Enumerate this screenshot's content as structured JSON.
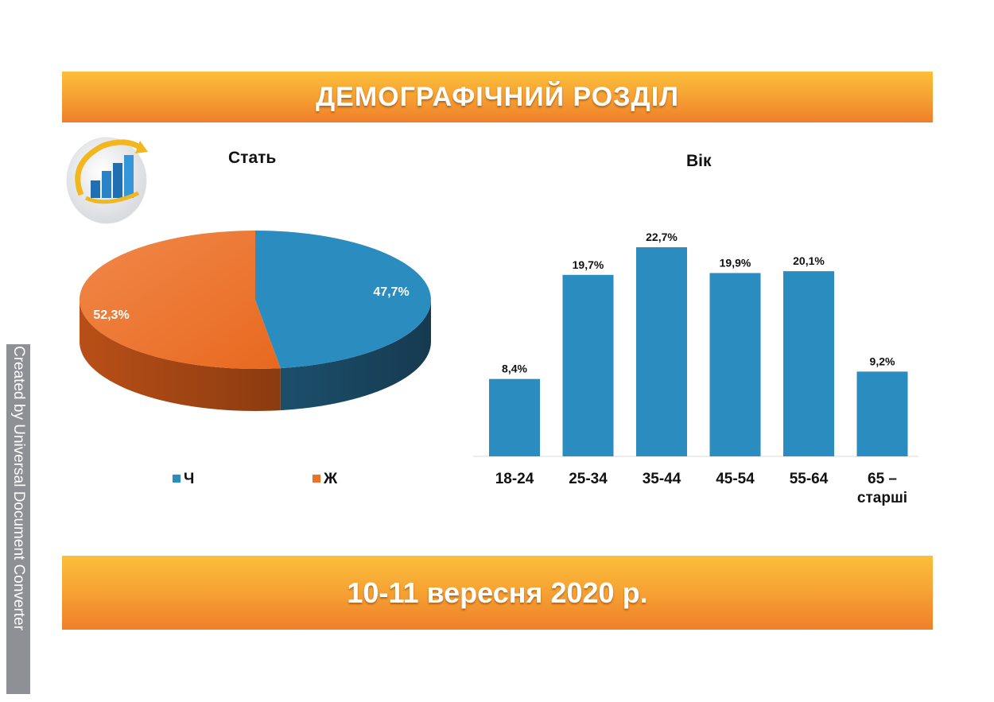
{
  "header": {
    "title": "ДЕМОГРАФІЧНИЙ РОЗДІЛ"
  },
  "footer": {
    "text": "10-11 вересня 2020 р."
  },
  "side_note": "Created by Universal Document Converter",
  "logo_icon": "growth-chart-logo-icon",
  "colors": {
    "blue": "#2b8cbf",
    "orange": "#ed7126",
    "banner": "#f7a434"
  },
  "chart_data": [
    {
      "type": "pie",
      "title": "Стать",
      "slices": [
        {
          "label": "Ч",
          "value": 47.7,
          "display": "47,7%",
          "color": "#2b8cbf"
        },
        {
          "label": "Ж",
          "value": 52.3,
          "display": "52,3%",
          "color": "#ed7126"
        }
      ],
      "legend_position": "bottom"
    },
    {
      "type": "bar",
      "title": "Вік",
      "categories": [
        "18-24",
        "25-34",
        "35-44",
        "45-54",
        "55-64",
        "65 – старші"
      ],
      "values": [
        8.4,
        19.7,
        22.7,
        19.9,
        20.1,
        9.2
      ],
      "data_labels": [
        "8,4%",
        "19,7%",
        "22,7%",
        "19,9%",
        "20,1%",
        "9,2%"
      ],
      "color": "#2b8cbf",
      "grid": false
    }
  ]
}
